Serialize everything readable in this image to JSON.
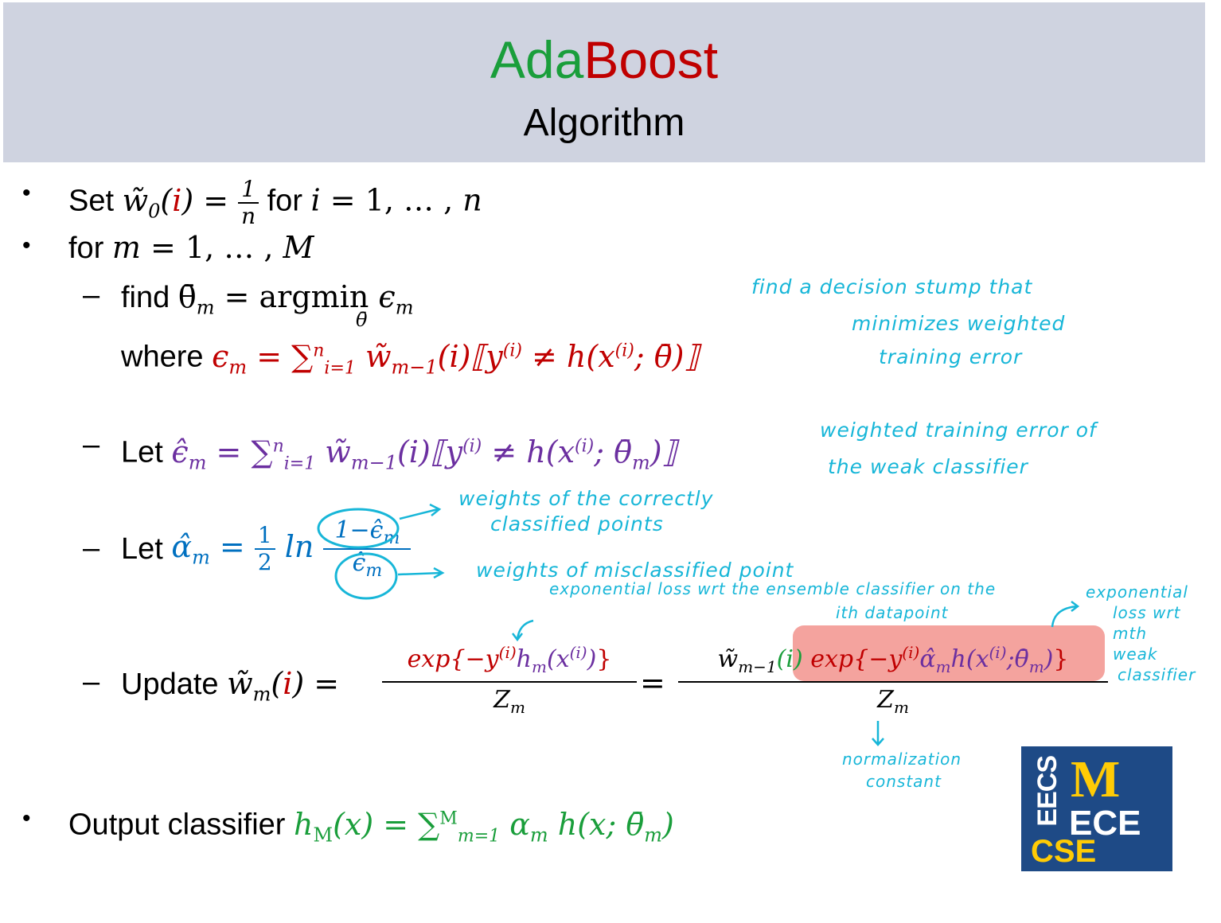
{
  "header": {
    "title_part1": "Ada",
    "title_part2": "Boost",
    "subtitle": "Algorithm"
  },
  "lines": {
    "set_text": "Set",
    "for_text": "for",
    "for_m_text": "for",
    "find_text": "find",
    "where_text": "where",
    "let_text": "Let",
    "update_text": "Update",
    "output_text": "Output classifier"
  },
  "annotations": {
    "find_stump_1": "find a  decision stump that",
    "find_stump_2": "minimizes  weighted",
    "find_stump_3": "training error",
    "weighted_error_1": "weighted  training  error of",
    "weighted_error_2": "the  weak  classifier",
    "correct_weights_1": "weights  of   the  correctly",
    "correct_weights_2": "classified  points",
    "misclassified": "weights of  misclassified point",
    "ensemble_loss_1": "exponential loss wrt  the ensemble classifier  on the",
    "ensemble_loss_2": "ith  datapoint",
    "exp_loss_1": "exponential",
    "exp_loss_2": "loss wrt",
    "exp_loss_3": "mth",
    "exp_loss_4": "weak",
    "exp_loss_5": "classifier",
    "normalization_1": "normalization",
    "normalization_2": "constant"
  },
  "logo": {
    "eecs": "EECS",
    "m": "M",
    "ece": "ECE",
    "cse": "CSE",
    "colors": {
      "background": "#1e4a86",
      "maize": "#ffcb05",
      "white": "#ffffff"
    }
  },
  "colors": {
    "header_bg": "#cfd3e0",
    "green": "#1a9e3b",
    "red": "#c00000",
    "purple": "#6b2fa0",
    "blue": "#0070c0",
    "annotation": "#17b6d8",
    "highlight": "#f4a39e"
  }
}
